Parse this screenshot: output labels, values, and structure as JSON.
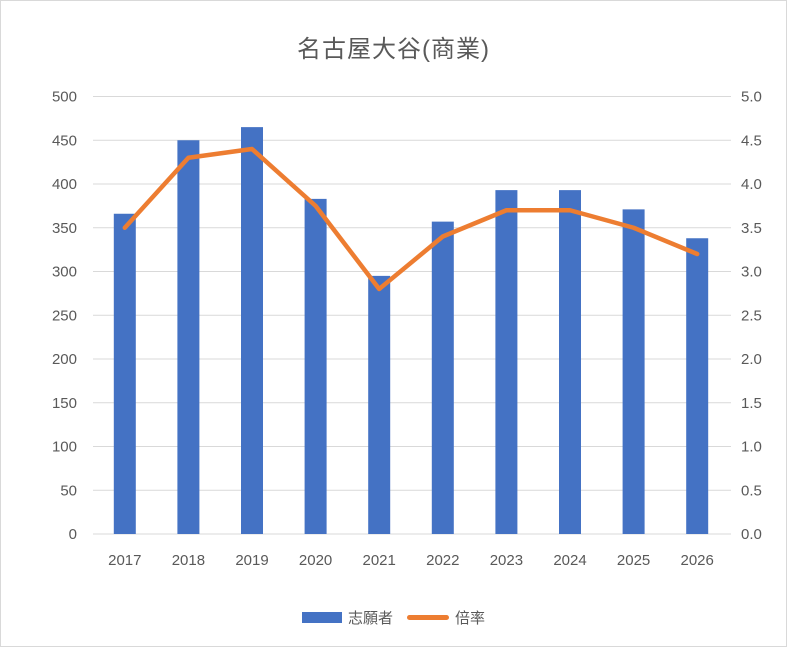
{
  "chart_data": {
    "type": "combo-bar-line",
    "title": "名古屋大谷(商業)",
    "categories": [
      "2017",
      "2018",
      "2019",
      "2020",
      "2021",
      "2022",
      "2023",
      "2024",
      "2025",
      "2026"
    ],
    "series": [
      {
        "name": "志願者",
        "type": "bar",
        "axis": "left",
        "color": "#4472C4",
        "values": [
          366,
          450,
          465,
          383,
          295,
          357,
          393,
          393,
          371,
          338
        ]
      },
      {
        "name": "倍率",
        "type": "line",
        "axis": "right",
        "color": "#ED7D31",
        "values": [
          3.5,
          4.3,
          4.4,
          3.75,
          2.8,
          3.4,
          3.7,
          3.7,
          3.5,
          3.2
        ]
      }
    ],
    "left_axis": {
      "min": 0,
      "max": 500,
      "step": 50,
      "ticks": [
        "0",
        "50",
        "100",
        "150",
        "200",
        "250",
        "300",
        "350",
        "400",
        "450",
        "500"
      ]
    },
    "right_axis": {
      "min": 0.0,
      "max": 5.0,
      "step": 0.5,
      "ticks": [
        "0.0",
        "0.5",
        "1.0",
        "1.5",
        "2.0",
        "2.5",
        "3.0",
        "3.5",
        "4.0",
        "4.5",
        "5.0"
      ]
    },
    "grid": "horizontal",
    "legend_position": "bottom",
    "colors": {
      "background": "#FFFFFF",
      "gridline": "#D9D9D9",
      "border": "#D9D9D9",
      "text": "#595959",
      "bar": "#4472C4",
      "line": "#ED7D31"
    }
  }
}
